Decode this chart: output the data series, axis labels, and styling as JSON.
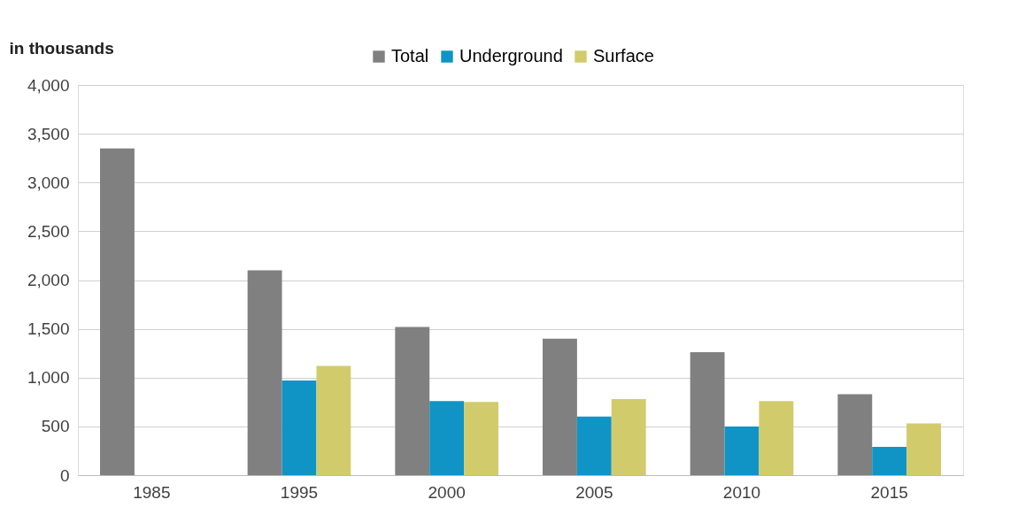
{
  "chart_data": {
    "type": "bar",
    "ylabel": "in thousands",
    "categories": [
      "1985",
      "1995",
      "2000",
      "2005",
      "2010",
      "2015"
    ],
    "series": [
      {
        "name": "Total",
        "color": "#808080",
        "values": [
          3350,
          2100,
          1520,
          1400,
          1260,
          830
        ]
      },
      {
        "name": "Underground",
        "color": "#1094c6",
        "values": [
          null,
          970,
          760,
          600,
          500,
          290
        ]
      },
      {
        "name": "Surface",
        "color": "#d2cb6c",
        "values": [
          null,
          1120,
          750,
          780,
          760,
          530
        ]
      }
    ],
    "ylim": [
      0,
      4000
    ],
    "yticks": [
      0,
      500,
      {
        "value": 1000,
        "label": "1,000"
      },
      {
        "value": 1500,
        "label": "1,500"
      },
      {
        "value": 2000,
        "label": "2,000"
      },
      {
        "value": 2500,
        "label": "2,500"
      },
      {
        "value": 3000,
        "label": "3,000"
      },
      {
        "value": 3500,
        "label": "3,500"
      },
      {
        "value": 4000,
        "label": "4,000"
      }
    ],
    "grid": "y",
    "legend": "top"
  }
}
